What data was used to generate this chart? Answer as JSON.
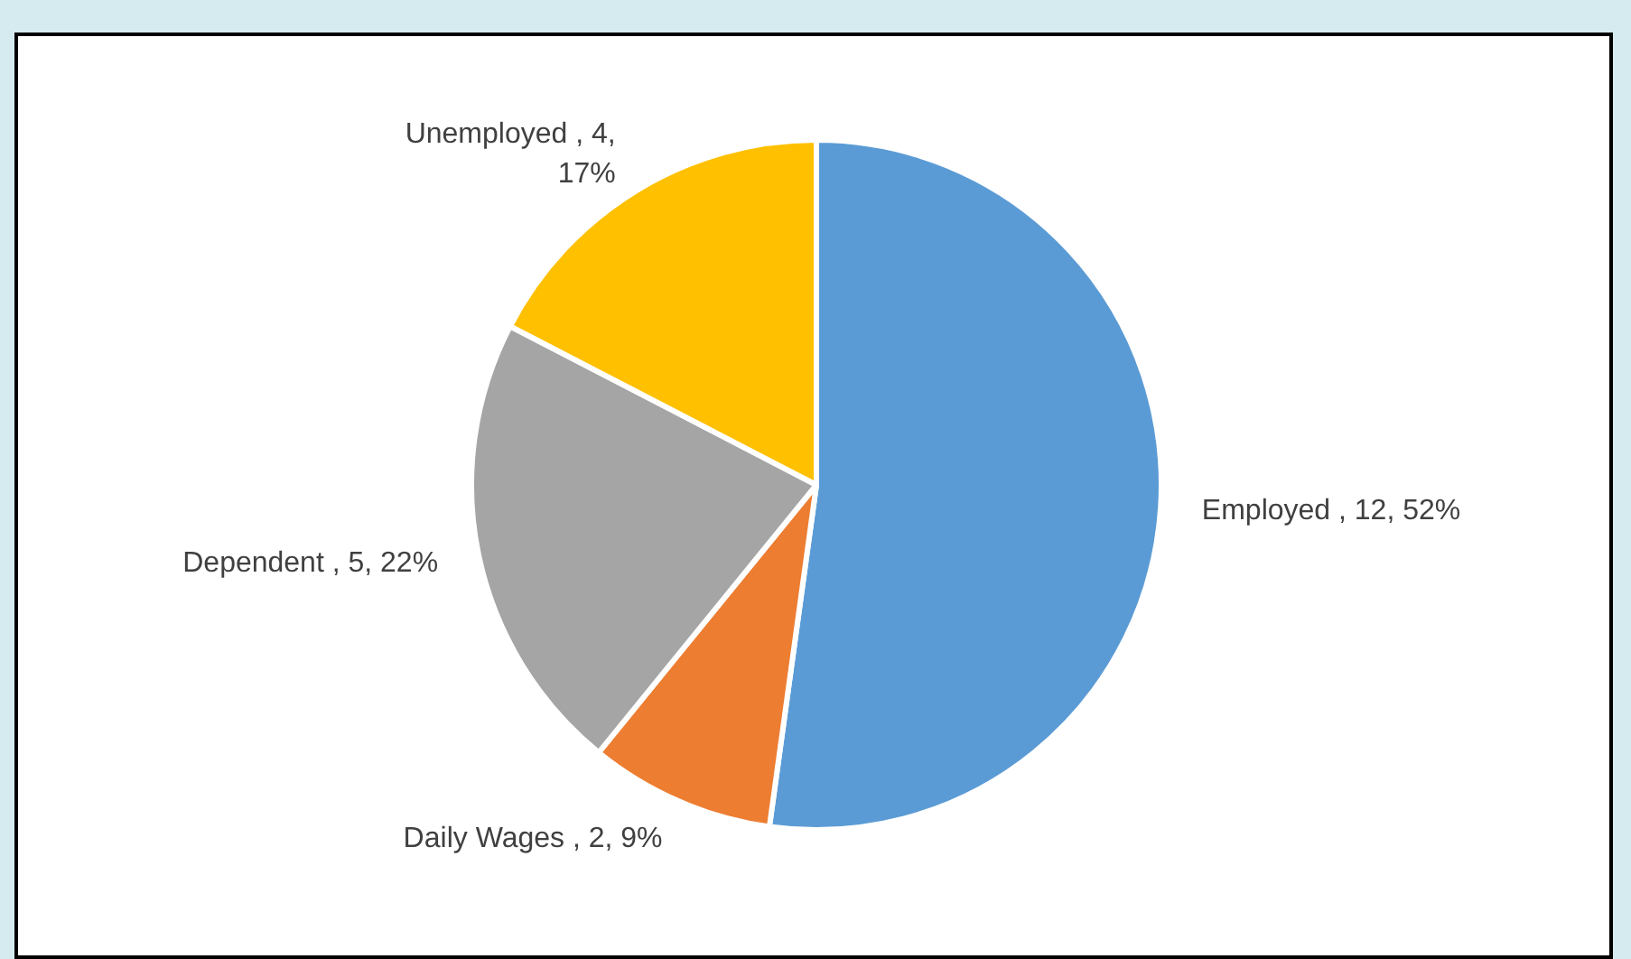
{
  "chart_data": {
    "type": "pie",
    "categories": [
      "Employed",
      "Daily Wages",
      "Dependent",
      "Unemployed"
    ],
    "values": [
      12,
      2,
      5,
      4
    ],
    "colors": [
      "#5b9bd5",
      "#ed7d31",
      "#a5a5a5",
      "#ffc000"
    ],
    "value_labels": [
      "12, 52%",
      "2, 9%",
      "5, 22%",
      "4, 17%"
    ],
    "legend": false
  }
}
